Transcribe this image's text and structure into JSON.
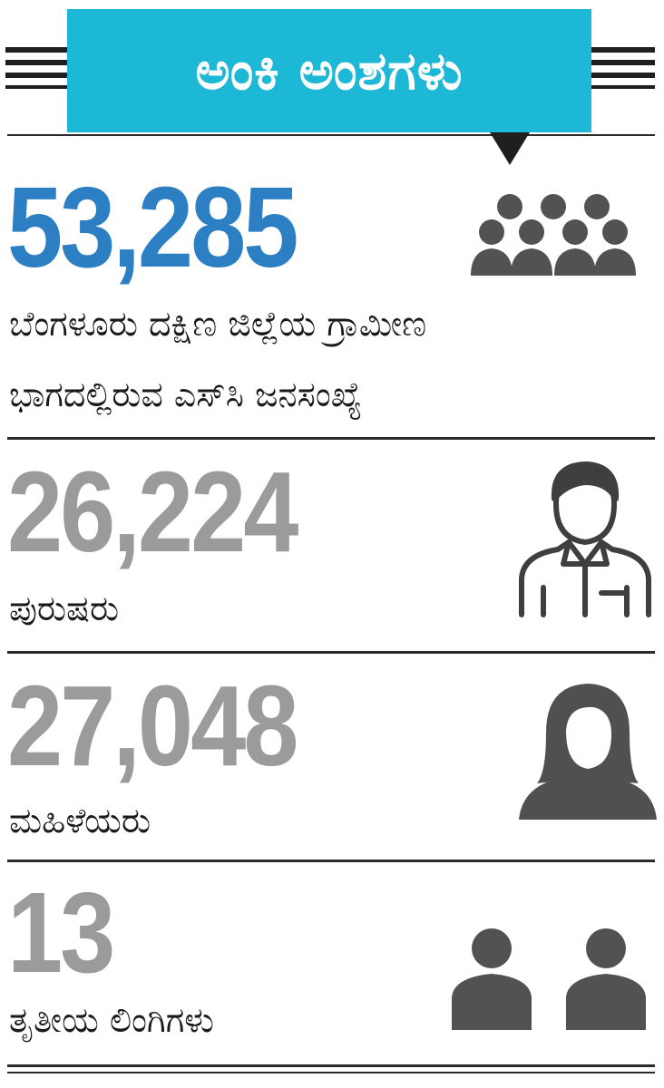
{
  "header": {
    "title": "ಅಂಕಿ ಅಂಶಗಳು",
    "accent_color": "#1db8d6"
  },
  "stats": [
    {
      "value": "53,285",
      "label_line1": "ಬೆಂಗಳೂರು ದಕ್ಷಿಣ ಜಿಲ್ಲೆಯ ಗ್ರಾಮೀಣ",
      "label_line2": "ಭಾಗದಲ್ಲಿರುವ ಎಸ್‌ಸಿ ಜನಸಂಖ್ಯೆ",
      "icon": "group-people-icon",
      "color": "#2b7fc2"
    },
    {
      "value": "26,224",
      "label_line1": "ಪುರುಷರು",
      "icon": "man-icon",
      "color": "#9b9b9b"
    },
    {
      "value": "27,048",
      "label_line1": "ಮಹಿಳೆಯರು",
      "icon": "woman-icon",
      "color": "#9b9b9b"
    },
    {
      "value": "13",
      "label_line1": "ತೃತೀಯ ಲಿಂಗಿಗಳು",
      "icon": "two-persons-icon",
      "color": "#9b9b9b"
    }
  ]
}
